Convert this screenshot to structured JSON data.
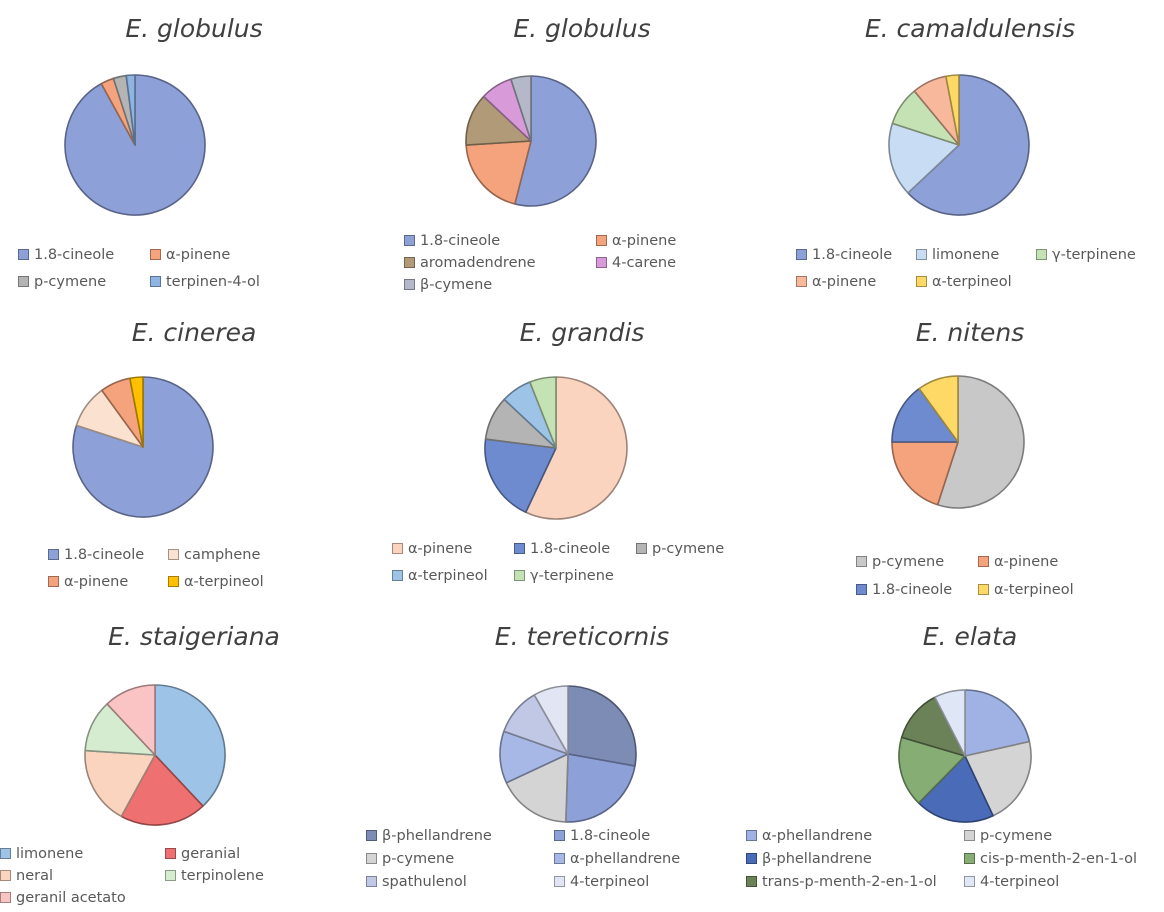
{
  "chart_data": [
    {
      "type": "pie",
      "title": "E. globulus",
      "categories": [
        "1.8-cineole",
        "α-pinene",
        "p-cymene",
        "terpinen-4-ol"
      ],
      "values": [
        92,
        3,
        3,
        2
      ],
      "colors": [
        "#8ea0d8",
        "#f4a37c",
        "#b4b4b4",
        "#8fb4e3"
      ],
      "legend_columns": 2
    },
    {
      "type": "pie",
      "title": "E. globulus",
      "categories": [
        "1.8-cineole",
        "α-pinene",
        "aromadendrene",
        "4-carene",
        "β-cymene"
      ],
      "values": [
        54,
        20,
        13,
        8,
        5
      ],
      "colors": [
        "#8ea0d8",
        "#f4a37c",
        "#b09a78",
        "#d89ad8",
        "#b4b8c8"
      ],
      "legend_columns": 2
    },
    {
      "type": "pie",
      "title": "E. camaldulensis",
      "categories": [
        "1.8-cineole",
        "limonene",
        "γ-terpinene",
        "α-pinene",
        "α-terpineol"
      ],
      "values": [
        63,
        17,
        9,
        8,
        3
      ],
      "colors": [
        "#8ea0d8",
        "#c8dcf4",
        "#c4e2b4",
        "#f8b89c",
        "#ffd966"
      ],
      "legend_columns": 3
    },
    {
      "type": "pie",
      "title": "E. cinerea",
      "categories": [
        "1.8-cineole",
        "camphene",
        "α-pinene",
        "α-terpineol"
      ],
      "values": [
        80,
        10,
        7,
        3
      ],
      "colors": [
        "#8ea0d8",
        "#fbe2d0",
        "#f4a37c",
        "#ffc000"
      ],
      "legend_columns": 2
    },
    {
      "type": "pie",
      "title": "E. grandis",
      "categories": [
        "α-pinene",
        "1.8-cineole",
        "p-cymene",
        "α-terpineol",
        "γ-terpinene"
      ],
      "values": [
        57,
        20,
        10,
        7,
        6
      ],
      "colors": [
        "#fbd4c0",
        "#6f8bcf",
        "#b4b4b4",
        "#9dc3e6",
        "#c4e2b4"
      ],
      "legend_columns": 3
    },
    {
      "type": "pie",
      "title": "E. nitens",
      "categories": [
        "p-cymene",
        "α-pinene",
        "1.8-cineole",
        "α-terpineol"
      ],
      "values": [
        55,
        20,
        15,
        10
      ],
      "colors": [
        "#c8c8c8",
        "#f4a37c",
        "#6f8bcf",
        "#ffd966"
      ],
      "legend_columns": 2
    },
    {
      "type": "pie",
      "title": "E. staigeriana",
      "categories": [
        "limonene",
        "geranial",
        "neral",
        "terpinolene",
        "geranil acetato"
      ],
      "values": [
        38,
        20,
        18,
        12,
        12
      ],
      "colors": [
        "#9dc3e6",
        "#ee7070",
        "#fbd4c0",
        "#d6ecd0",
        "#fbc4c4"
      ],
      "legend_columns": 2
    },
    {
      "type": "pie",
      "title": "E. tereticornis",
      "categories": [
        "β-phellandrene",
        "1.8-cineole",
        "p-cymene",
        "α-phellandrene",
        "spathulenol",
        "4-terpineol"
      ],
      "values": [
        27,
        22,
        17,
        12,
        11,
        8
      ],
      "colors": [
        "#7d8cb4",
        "#8ea0d8",
        "#d4d4d4",
        "#a8b8e6",
        "#c0c8e6",
        "#e2e6f4"
      ],
      "legend_columns": 2
    },
    {
      "type": "pie",
      "title": "E. elata",
      "categories": [
        "α-phellandrene",
        "p-cymene",
        "β-phellandrene",
        "cis-p-menth-2-en-1-ol",
        "trans-p-menth-2-en-1-ol",
        "4-terpineol"
      ],
      "values": [
        20,
        20,
        18,
        16,
        12,
        7
      ],
      "colors": [
        "#a0b2e4",
        "#d4d4d4",
        "#4a6cb8",
        "#86ad74",
        "#6b8258",
        "#dfe6f6"
      ],
      "legend_columns": 2
    }
  ]
}
